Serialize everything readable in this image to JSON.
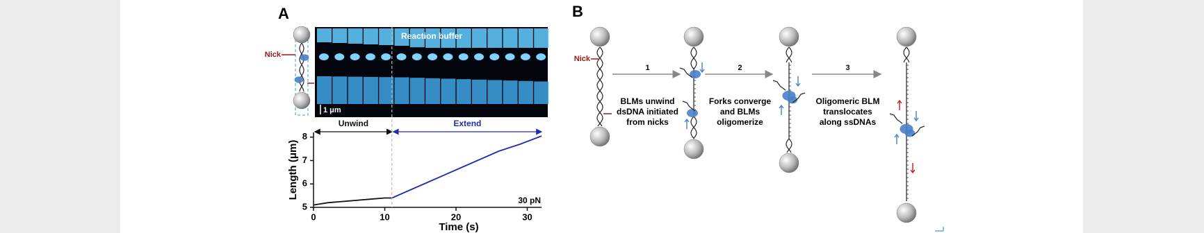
{
  "panel_a": {
    "label": "A",
    "nick": "Nick",
    "kymograph_title": "Reaction buffer",
    "scale_bar": "1 μm"
  },
  "chart_data": {
    "type": "line",
    "x_label": "Time (s)",
    "y_label": "Length (μm)",
    "annotation": "30 pN",
    "xlim": [
      0,
      32
    ],
    "ylim": [
      5,
      8.2
    ],
    "xticks": [
      0,
      10,
      20,
      30
    ],
    "yticks": [
      5,
      6,
      7,
      8
    ],
    "divider_x": 11,
    "series": [
      {
        "name": "Unwind",
        "color": "#111111",
        "x": [
          0,
          2,
          4,
          6,
          8,
          10,
          11
        ],
        "values": [
          5.1,
          5.2,
          5.25,
          5.3,
          5.35,
          5.4,
          5.4
        ]
      },
      {
        "name": "Extend",
        "color": "#1f2fa8",
        "x": [
          11,
          14,
          17,
          20,
          23,
          26,
          29,
          32
        ],
        "values": [
          5.4,
          5.8,
          6.2,
          6.6,
          7.0,
          7.4,
          7.7,
          8.05
        ]
      }
    ]
  },
  "panel_b": {
    "label": "B",
    "nick": "Nick",
    "steps": [
      {
        "number": "1",
        "lines": [
          "BLMs unwind",
          "dsDNA initiated",
          "from nicks"
        ]
      },
      {
        "number": "2",
        "lines": [
          "Forks converge",
          "and BLMs",
          "oligomerize"
        ]
      },
      {
        "number": "3",
        "lines": [
          "Oligomeric BLM",
          "translocates",
          "along ssDNAs"
        ]
      }
    ]
  }
}
